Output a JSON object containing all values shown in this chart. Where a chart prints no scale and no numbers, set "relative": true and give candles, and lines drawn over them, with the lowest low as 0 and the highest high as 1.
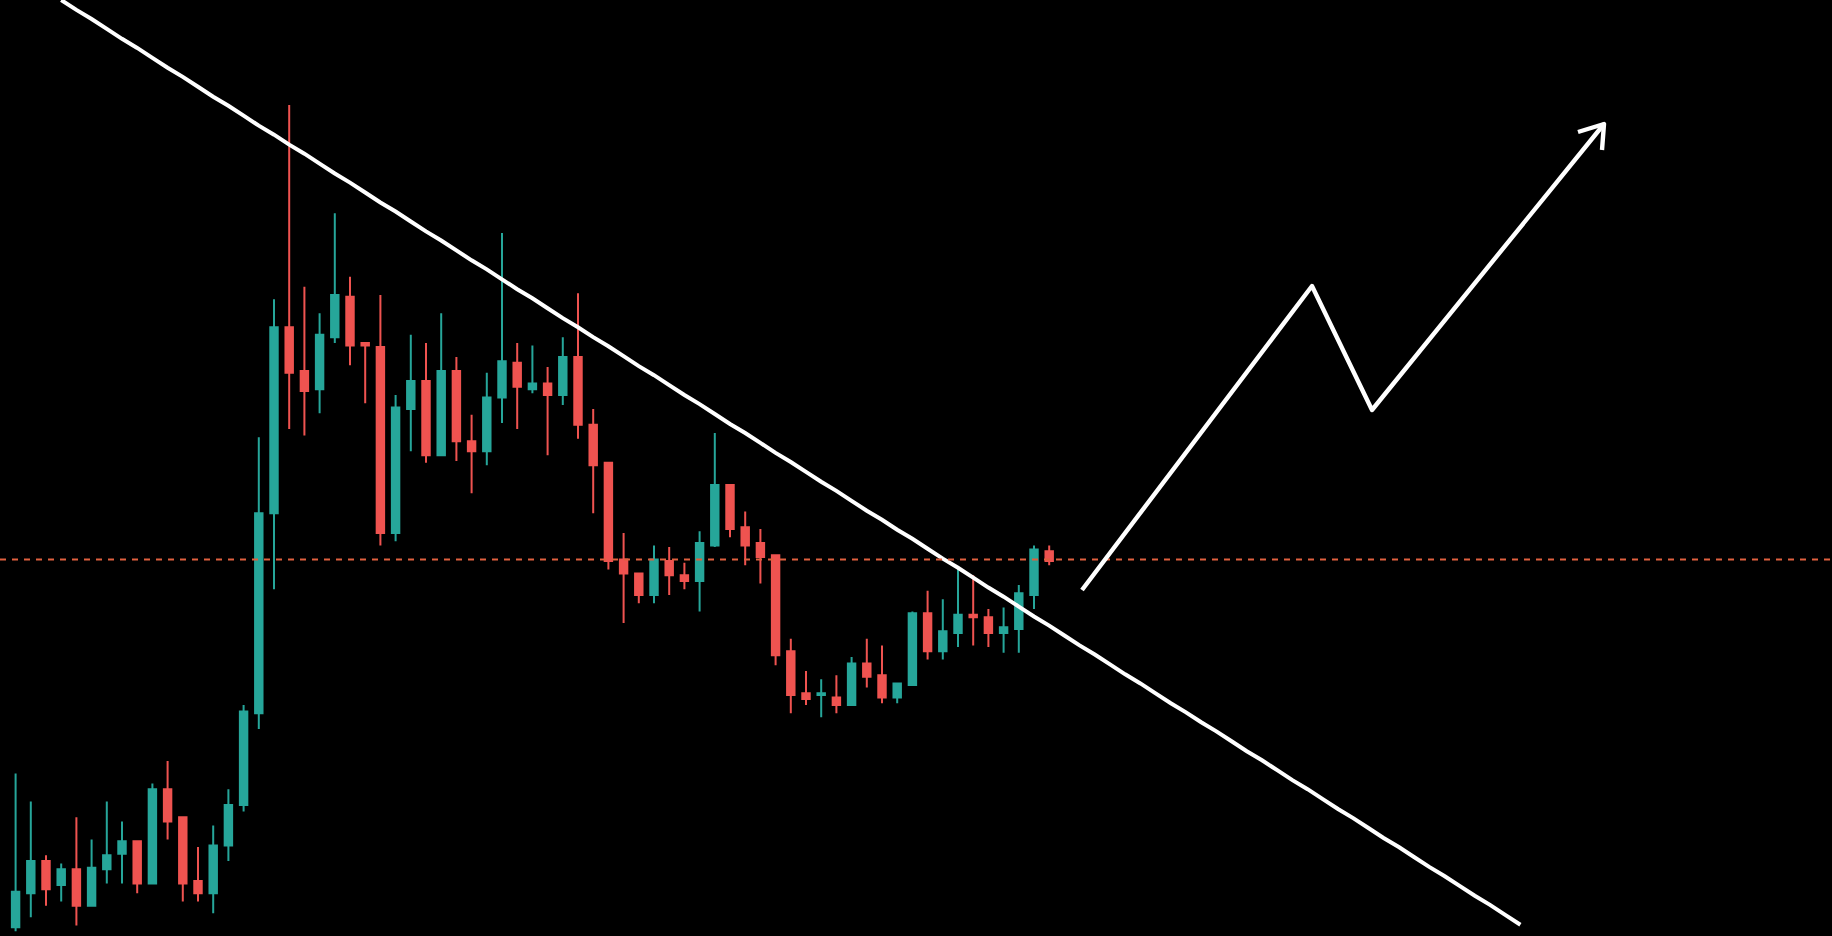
{
  "chart_data": {
    "type": "candlestick",
    "relative": true,
    "grid": false,
    "categories": [
      null,
      null,
      null,
      null,
      null,
      null,
      null,
      null,
      null,
      null,
      null,
      null,
      null,
      null,
      null,
      null,
      null,
      null,
      null,
      null,
      null,
      null,
      null,
      null,
      null,
      null,
      null,
      null,
      null,
      null,
      null,
      null,
      null,
      null,
      null,
      null,
      null,
      null,
      null,
      null,
      null,
      null,
      null,
      null,
      null,
      null,
      null,
      null,
      null,
      null,
      null,
      null,
      null,
      null,
      null,
      null,
      null,
      null,
      null,
      null,
      null,
      null,
      null,
      null,
      null,
      null,
      null,
      null,
      null,
      null,
      null,
      null,
      null,
      null,
      null,
      null,
      null,
      null,
      null,
      null,
      null,
      null,
      null,
      null,
      null,
      null,
      null,
      null,
      null,
      null,
      null,
      null,
      null,
      null,
      null,
      null,
      null,
      null,
      null,
      null,
      null,
      null,
      null,
      null,
      null,
      null,
      null,
      null,
      null,
      null,
      null,
      null,
      null,
      null,
      null,
      null,
      null,
      null,
      null,
      null
    ],
    "series": [
      {
        "type": "line",
        "color": "#ffffff",
        "values": [
          null,
          null,
          null,
          1.127,
          1.115,
          1.104,
          1.092,
          1.08,
          1.069,
          1.057,
          1.045,
          1.034,
          1.022,
          1.01,
          0.999,
          0.987,
          0.975,
          0.964,
          0.952,
          0.941,
          0.929,
          0.917,
          0.906,
          0.894,
          0.882,
          0.871,
          0.859,
          0.847,
          0.836,
          0.824,
          0.812,
          0.801,
          0.789,
          0.777,
          0.766,
          0.754,
          0.742,
          0.731,
          0.719,
          0.708,
          0.696,
          0.684,
          0.673,
          0.661,
          0.649,
          0.638,
          0.626,
          0.614,
          0.603,
          0.591,
          0.579,
          0.568,
          0.556,
          0.544,
          0.533,
          0.521,
          0.509,
          0.498,
          0.486,
          0.475,
          0.463,
          0.451,
          0.44,
          0.428,
          0.416,
          0.405,
          0.393,
          0.381,
          0.37,
          0.358,
          0.346,
          0.335,
          0.323,
          0.311,
          0.3,
          0.288,
          0.276,
          0.265,
          0.253,
          0.242,
          0.23,
          0.218,
          0.207,
          0.195,
          0.183,
          0.172,
          0.16,
          0.148,
          0.137,
          0.125,
          0.113,
          0.102,
          0.09,
          0.078,
          0.067,
          0.055,
          0.043,
          0.032,
          0.02,
          0.008,
          null,
          null,
          null,
          null,
          null,
          null,
          null,
          null,
          null,
          null,
          null,
          null,
          null,
          null,
          null,
          null,
          null,
          null,
          null,
          null
        ]
      }
    ],
    "ohlc": [
      [
        0.005,
        0.191,
        0,
        0.048
      ],
      [
        0.046,
        0.157,
        0.017,
        0.085
      ],
      [
        0.085,
        0.092,
        0.031,
        0.051
      ],
      [
        0.056,
        0.082,
        0.036,
        0.075
      ],
      [
        0.075,
        0.138,
        0.007,
        0.031
      ],
      [
        0.031,
        0.111,
        0.031,
        0.077
      ],
      [
        0.075,
        0.157,
        0.058,
        0.092
      ],
      [
        0.094,
        0.133,
        0.058,
        0.109
      ],
      [
        0.109,
        0.109,
        0.046,
        0.058
      ],
      [
        0.058,
        0.179,
        0.058,
        0.172
      ],
      [
        0.172,
        0.206,
        0.111,
        0.133
      ],
      [
        0.138,
        0.138,
        0.036,
        0.058
      ],
      [
        0.061,
        0.102,
        0.036,
        0.046
      ],
      [
        0.046,
        0.128,
        0.022,
        0.104
      ],
      [
        0.104,
        0.172,
        0.085,
        0.153
      ],
      [
        0.153,
        0.274,
        0.145,
        0.266
      ],
      [
        0.264,
        0.598,
        0.245,
        0.506
      ],
      [
        0.506,
        0.765,
        0.414,
        0.731
      ],
      [
        0.731,
        1,
        0.608,
        0.676
      ],
      [
        0.678,
        0.78,
        0.6,
        0.654
      ],
      [
        0.656,
        0.748,
        0.627,
        0.722
      ],
      [
        0.719,
        0.869,
        0.712,
        0.77
      ],
      [
        0.768,
        0.792,
        0.685,
        0.709
      ],
      [
        0.712,
        0.712,
        0.639,
        0.709
      ],
      [
        0.707,
        0.77,
        0.467,
        0.482
      ],
      [
        0.482,
        0.649,
        0.472,
        0.634
      ],
      [
        0.632,
        0.722,
        0.581,
        0.666
      ],
      [
        0.666,
        0.712,
        0.567,
        0.576
      ],
      [
        0.576,
        0.748,
        0.576,
        0.678
      ],
      [
        0.678,
        0.695,
        0.569,
        0.593
      ],
      [
        0.593,
        0.625,
        0.53,
        0.581
      ],
      [
        0.581,
        0.676,
        0.564,
        0.646
      ],
      [
        0.646,
        0.845,
        0.615,
        0.69
      ],
      [
        0.688,
        0.712,
        0.608,
        0.659
      ],
      [
        0.656,
        0.709,
        0.651,
        0.663
      ],
      [
        0.663,
        0.683,
        0.576,
        0.649
      ],
      [
        0.649,
        0.719,
        0.637,
        0.695
      ],
      [
        0.695,
        0.772,
        0.596,
        0.613
      ],
      [
        0.613,
        0.632,
        0.506,
        0.564
      ],
      [
        0.567,
        0.567,
        0.438,
        0.448
      ],
      [
        0.45,
        0.482,
        0.373,
        0.433
      ],
      [
        0.433,
        0.433,
        0.397,
        0.407
      ],
      [
        0.407,
        0.467,
        0.397,
        0.45
      ],
      [
        0.448,
        0.465,
        0.407,
        0.431
      ],
      [
        0.431,
        0.446,
        0.414,
        0.424
      ],
      [
        0.424,
        0.484,
        0.387,
        0.47
      ],
      [
        0.467,
        0.603,
        0.465,
        0.54
      ],
      [
        0.54,
        0.54,
        0.477,
        0.487
      ],
      [
        0.489,
        0.508,
        0.443,
        0.467
      ],
      [
        0.47,
        0.487,
        0.421,
        0.453
      ],
      [
        0.455,
        0.455,
        0.322,
        0.334
      ],
      [
        0.339,
        0.354,
        0.264,
        0.286
      ],
      [
        0.288,
        0.315,
        0.274,
        0.281
      ],
      [
        0.286,
        0.305,
        0.259,
        0.288
      ],
      [
        0.283,
        0.31,
        0.264,
        0.274
      ],
      [
        0.274,
        0.332,
        0.274,
        0.324
      ],
      [
        0.324,
        0.354,
        0.295,
        0.308
      ],
      [
        0.31,
        0.346,
        0.276,
        0.283
      ],
      [
        0.283,
        0.3,
        0.276,
        0.3
      ],
      [
        0.298,
        0.387,
        0.298,
        0.385
      ],
      [
        0.385,
        0.412,
        0.329,
        0.339
      ],
      [
        0.339,
        0.402,
        0.329,
        0.363
      ],
      [
        0.361,
        0.438,
        0.344,
        0.383
      ],
      [
        0.383,
        0.431,
        0.346,
        0.38
      ],
      [
        0.38,
        0.39,
        0.344,
        0.361
      ],
      [
        0.361,
        0.392,
        0.337,
        0.368
      ],
      [
        0.366,
        0.419,
        0.337,
        0.409
      ],
      [
        0.407,
        0.467,
        0.39,
        0.462
      ],
      [
        0.46,
        0.467,
        0.443,
        0.448
      ],
      null,
      null,
      null,
      null,
      null,
      null,
      null,
      null,
      null,
      null,
      null,
      null,
      null,
      null,
      null,
      null,
      null,
      null,
      null,
      null,
      null,
      null,
      null,
      null,
      null,
      null,
      null,
      null,
      null,
      null,
      null,
      null,
      null,
      null,
      null,
      null,
      null,
      null,
      null,
      null,
      null,
      null,
      null,
      null,
      null,
      null,
      null,
      null,
      null,
      null,
      null
    ],
    "colors": [
      "#26a69a",
      "#26a69a",
      "#ef5350",
      "#26a69a",
      "#ef5350",
      "#26a69a",
      "#26a69a",
      "#26a69a",
      "#ef5350",
      "#26a69a",
      "#ef5350",
      "#ef5350",
      "#ef5350",
      "#26a69a",
      "#26a69a",
      "#26a69a",
      "#26a69a",
      "#26a69a",
      "#ef5350",
      "#ef5350",
      "#26a69a",
      "#26a69a",
      "#ef5350",
      "#ef5350",
      "#ef5350",
      "#26a69a",
      "#26a69a",
      "#ef5350",
      "#26a69a",
      "#ef5350",
      "#ef5350",
      "#26a69a",
      "#26a69a",
      "#ef5350",
      "#26a69a",
      "#ef5350",
      "#26a69a",
      "#ef5350",
      "#ef5350",
      "#ef5350",
      "#ef5350",
      "#ef5350",
      "#26a69a",
      "#ef5350",
      "#ef5350",
      "#26a69a",
      "#26a69a",
      "#ef5350",
      "#ef5350",
      "#ef5350",
      "#ef5350",
      "#ef5350",
      "#ef5350",
      "#26a69a",
      "#ef5350",
      "#26a69a",
      "#ef5350",
      "#ef5350",
      "#26a69a",
      "#26a69a",
      "#ef5350",
      "#26a69a",
      "#26a69a",
      "#ef5350",
      "#ef5350",
      "#26a69a",
      "#26a69a",
      "#26a69a",
      "#ef5350",
      null,
      null,
      null,
      null,
      null,
      null,
      null,
      null,
      null,
      null,
      null,
      null,
      null,
      null,
      null,
      null,
      null,
      null,
      null,
      null,
      null,
      null,
      null,
      null,
      null,
      null,
      null,
      null,
      null,
      null,
      null,
      null,
      null,
      null,
      null,
      null,
      null,
      null,
      null,
      null,
      null,
      null,
      null,
      null,
      null,
      null,
      null,
      null,
      null,
      null,
      null
    ],
    "ref_lines": [
      {
        "axis": "y",
        "value": 0.45,
        "color": "#e0603f",
        "line_style": "dotted"
      }
    ]
  }
}
